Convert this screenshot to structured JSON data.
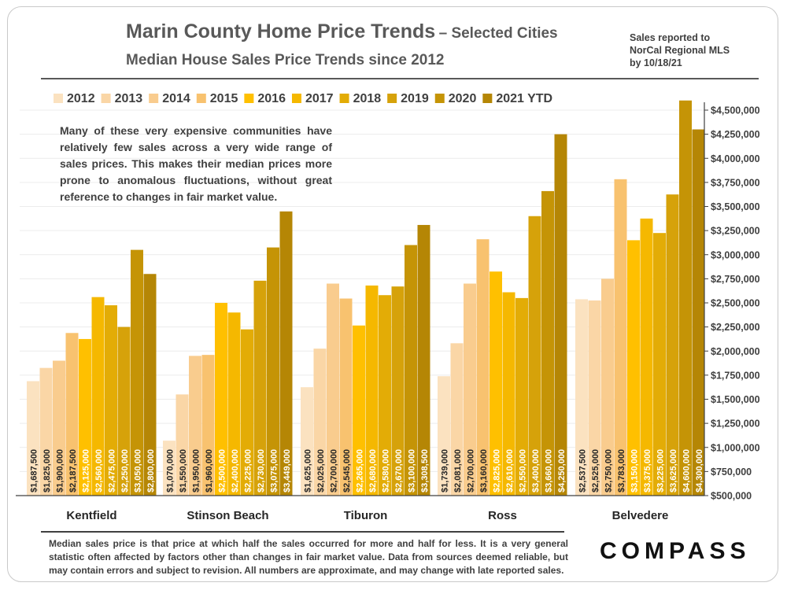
{
  "header": {
    "title": "Marin County Home Price Trends",
    "title_suffix": "– Selected Cities",
    "subtitle": "Median House Sales Price Trends since 2012",
    "source_lines": [
      "Sales reported to",
      "NorCal Regional MLS",
      "by 10/18/21"
    ]
  },
  "callout": "Many of these very expensive communities have relatively few sales across a very wide range of sales prices. This makes their median prices more prone to anomalous fluctuations, without great reference to changes in fair market value.",
  "footnote": "Median sales price is that price at which half the sales occurred for more and half for less. It is a very general statistic often affected by factors other than changes in fair market value. Data from sources deemed reliable, but may contain errors and subject to revision. All numbers are approximate, and may change with late reported sales.",
  "logo": "COMPASS",
  "chart_data": {
    "type": "bar",
    "title": "Median House Sales Price Trends since 2012",
    "categories": [
      "Kentfield",
      "Stinson Beach",
      "Tiburon",
      "Ross",
      "Belvedere"
    ],
    "series": [
      {
        "name": "2012",
        "color": "#fbe2c0",
        "values": [
          1687500,
          1070000,
          1625000,
          1739000,
          2537500
        ],
        "labels": [
          "$1,687,500",
          "$1,070,000",
          "$1,625,000",
          "$1,739,000",
          "$2,537,500"
        ]
      },
      {
        "name": "2013",
        "color": "#fad6a6",
        "values": [
          1825000,
          1550000,
          2025000,
          2081000,
          2525000
        ],
        "labels": [
          "$1,825,000",
          "$1,550,000",
          "$2,025,000",
          "$2,081,000",
          "$2,525,000"
        ]
      },
      {
        "name": "2014",
        "color": "#f9cc8e",
        "values": [
          1900000,
          1950000,
          2700000,
          2700000,
          2750000
        ],
        "labels": [
          "$1,900,000",
          "$1,950,000",
          "$2,700,000",
          "$2,700,000",
          "$2,750,000"
        ]
      },
      {
        "name": "2015",
        "color": "#f8c26f",
        "values": [
          2187500,
          1960000,
          2545000,
          3160000,
          3783000
        ],
        "labels": [
          "$2,187,500",
          "$1,960,000",
          "$2,545,000",
          "$3,160,000",
          "$3,783,000"
        ]
      },
      {
        "name": "2016",
        "color": "#ffc000",
        "values": [
          2125000,
          2500000,
          2265000,
          2825000,
          3150000
        ],
        "labels": [
          "$2,125,000",
          "$2,500,000",
          "$2,265,000",
          "$2,825,000",
          "$3,150,000"
        ]
      },
      {
        "name": "2017",
        "color": "#f5b800",
        "values": [
          2560000,
          2400000,
          2680000,
          2610000,
          3375000
        ],
        "labels": [
          "$2,560,000",
          "$2,400,000",
          "$2,680,000",
          "$2,610,000",
          "$3,375,000"
        ]
      },
      {
        "name": "2018",
        "color": "#e3ac06",
        "values": [
          2475000,
          2225000,
          2580000,
          2550000,
          3225000
        ],
        "labels": [
          "$2,475,000",
          "$2,225,000",
          "$2,580,000",
          "$2,550,000",
          "$3,225,000"
        ]
      },
      {
        "name": "2019",
        "color": "#d6a20a",
        "values": [
          2250000,
          2730000,
          2670000,
          3400000,
          3625000
        ],
        "labels": [
          "$2,250,000",
          "$2,730,000",
          "$2,670,000",
          "$3,400,000",
          "$3,625,000"
        ]
      },
      {
        "name": "2020",
        "color": "#c59406",
        "values": [
          3050000,
          3075000,
          3100000,
          3660000,
          4600000
        ],
        "labels": [
          "$3,050,000",
          "$3,075,000",
          "$3,100,000",
          "$3,660,000",
          "$4,600,000"
        ]
      },
      {
        "name": "2021 YTD",
        "color": "#b58605",
        "values": [
          2800000,
          3449000,
          3308500,
          4250000,
          4300000
        ],
        "labels": [
          "$2,800,000",
          "$3,449,000",
          "$3,308,500",
          "$4,250,000",
          "$4,300,000"
        ]
      }
    ],
    "ylim": [
      500000,
      4500000
    ],
    "yticks": [
      500000,
      750000,
      1000000,
      1250000,
      1500000,
      1750000,
      2000000,
      2250000,
      2500000,
      2750000,
      3000000,
      3250000,
      3500000,
      3750000,
      4000000,
      4250000,
      4500000
    ],
    "ytick_labels": [
      "$500,000",
      "$750,000",
      "$1,000,000",
      "$1,250,000",
      "$1,500,000",
      "$1,750,000",
      "$2,000,000",
      "$2,250,000",
      "$2,500,000",
      "$2,750,000",
      "$3,000,000",
      "$3,250,000",
      "$3,500,000",
      "$3,750,000",
      "$4,000,000",
      "$4,250,000",
      "$4,500,000"
    ],
    "yaxis_side": "right",
    "legend_position": "top",
    "grid": true,
    "colors": {
      "grid": "#ececec",
      "axis": "#404040",
      "label_light": "#262626",
      "label_dark": "#ffffff"
    }
  }
}
